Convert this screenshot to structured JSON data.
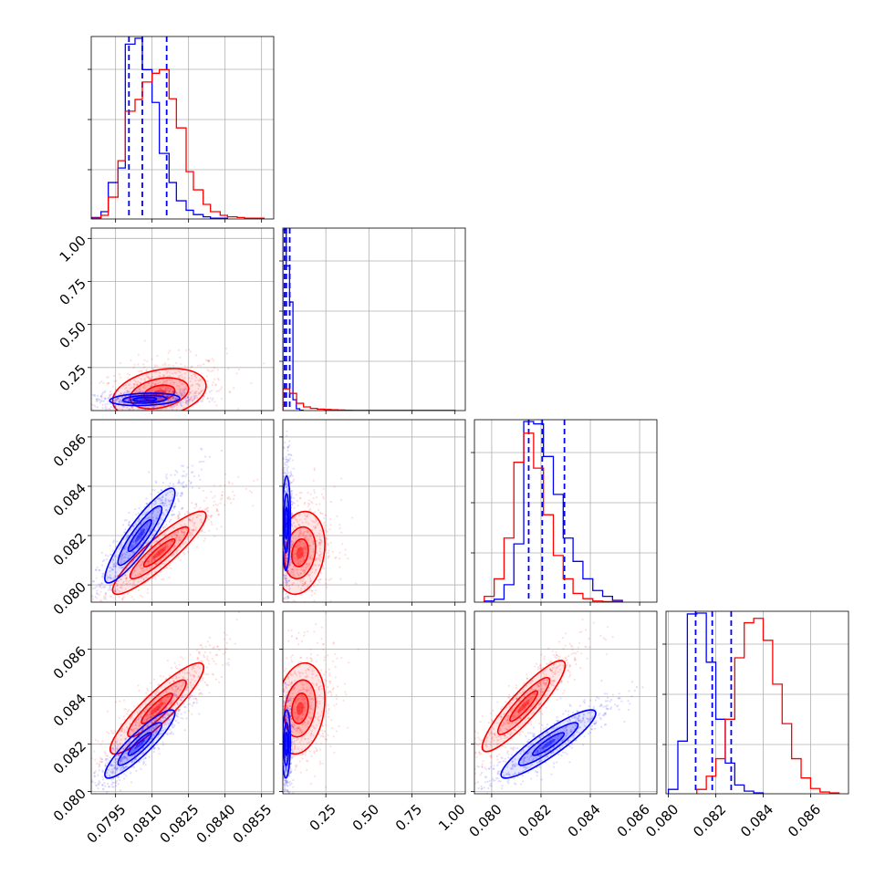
{
  "colors": {
    "series_a": "#0000ff",
    "series_b": "#ff0000",
    "grid": "#b0b0b0"
  },
  "chart_data": {
    "type": "corner",
    "grid": true,
    "params": [
      {
        "range": [
          0.0785,
          0.086
        ],
        "ticks": [
          "0.0795",
          "0.0810",
          "0.0825",
          "0.0840",
          "0.0855"
        ],
        "tick_values": [
          0.0795,
          0.081,
          0.0825,
          0.084,
          0.0855
        ]
      },
      {
        "range": [
          0.0,
          1.06
        ],
        "ticks": [
          "0.25",
          "0.50",
          "0.75",
          "1.00"
        ],
        "tick_values": [
          0.25,
          0.5,
          0.75,
          1.0
        ]
      },
      {
        "range": [
          0.0793,
          0.0867
        ],
        "ticks": [
          "0.080",
          "0.082",
          "0.084",
          "0.086"
        ],
        "tick_values": [
          0.08,
          0.082,
          0.084,
          0.086
        ]
      },
      {
        "range": [
          0.0799,
          0.0876
        ],
        "ticks": [
          "0.080",
          "0.082",
          "0.084",
          "0.086"
        ],
        "tick_values": [
          0.08,
          0.082,
          0.084,
          0.086
        ]
      }
    ],
    "series": [
      {
        "color": "#0000ff",
        "histograms": [
          {
            "edges": [
              0.0785,
              0.0789,
              0.0792,
              0.0796,
              0.0799,
              0.0803,
              0.0806,
              0.081,
              0.0813,
              0.0817,
              0.082,
              0.0824,
              0.0827,
              0.0831,
              0.0834,
              0.0838,
              0.0841
            ],
            "counts": [
              2,
              10,
              50,
              70,
              240,
              248,
              205,
              160,
              90,
              50,
              25,
              12,
              6,
              3,
              1,
              1
            ]
          },
          {
            "edges": [
              0.0,
              0.0196,
              0.0392,
              0.0588,
              0.0784,
              0.098,
              0.1176
            ],
            "counts": [
              999,
              800,
              600,
              60,
              10,
              2
            ]
          },
          {
            "edges": [
              0.0797,
              0.0801,
              0.0805,
              0.0809,
              0.0813,
              0.0817,
              0.0821,
              0.0825,
              0.0829,
              0.0833,
              0.0837,
              0.0841,
              0.0845,
              0.0849,
              0.0853
            ],
            "counts": [
              2,
              5,
              30,
              100,
              310,
              306,
              250,
              185,
              110,
              70,
              40,
              20,
              10,
              3
            ]
          },
          {
            "edges": [
              0.08,
              0.0804,
              0.0808,
              0.0812,
              0.0816,
              0.082,
              0.0824,
              0.0828,
              0.0832,
              0.0836,
              0.084
            ],
            "counts": [
              5,
              60,
              205,
              206,
              150,
              85,
              35,
              10,
              3,
              1
            ]
          }
        ],
        "quantiles": [
          [
            0.08005,
            0.0806,
            0.0816
          ],
          [
            0.01,
            0.02,
            0.04
          ],
          [
            0.0815,
            0.08205,
            0.08295
          ],
          [
            0.08115,
            0.08185,
            0.08265
          ]
        ],
        "ellipses": [
          {
            "p": [
              0,
              1
            ],
            "center": [
              0.0807,
              0.065
            ],
            "sd": [
              0.0006,
              0.015
            ],
            "rho": 0.2
          },
          {
            "p": [
              0,
              2
            ],
            "center": [
              0.0805,
              0.082
            ],
            "sd": [
              0.0006,
              0.0008
            ],
            "rho": 0.9
          },
          {
            "p": [
              1,
              2
            ],
            "center": [
              0.02,
              0.0825
            ],
            "sd": [
              0.01,
              0.0008
            ],
            "rho": 0.1
          },
          {
            "p": [
              0,
              3
            ],
            "center": [
              0.0805,
              0.082
            ],
            "sd": [
              0.0006,
              0.0006
            ],
            "rho": 0.9
          },
          {
            "p": [
              1,
              3
            ],
            "center": [
              0.02,
              0.082
            ],
            "sd": [
              0.01,
              0.0006
            ],
            "rho": 0.1
          },
          {
            "p": [
              2,
              3
            ],
            "center": [
              0.0823,
              0.082
            ],
            "sd": [
              0.0008,
              0.0006
            ],
            "rho": 0.9
          }
        ]
      },
      {
        "color": "#ff0000",
        "histograms": [
          {
            "edges": [
              0.0785,
              0.0789,
              0.0792,
              0.0796,
              0.0799,
              0.0803,
              0.0806,
              0.081,
              0.0813,
              0.0817,
              0.082,
              0.0824,
              0.0827,
              0.0831,
              0.0834,
              0.0838,
              0.0841,
              0.0845,
              0.0848,
              0.0852,
              0.0856
            ],
            "counts": [
              1,
              5,
              30,
              80,
              148,
              164,
              188,
              200,
              205,
              165,
              125,
              65,
              40,
              20,
              10,
              5,
              3,
              2,
              1,
              1
            ]
          },
          {
            "edges": [
              0.0,
              0.04,
              0.08,
              0.12,
              0.16,
              0.2,
              0.24,
              0.28,
              0.32,
              0.36,
              0.4,
              0.44,
              0.48,
              1.0
            ],
            "counts": [
              120,
              95,
              40,
              20,
              12,
              8,
              6,
              4,
              3,
              2,
              1,
              1,
              1
            ]
          },
          {
            "edges": [
              0.0797,
              0.0801,
              0.0805,
              0.0809,
              0.0813,
              0.0817,
              0.0821,
              0.0825,
              0.0829,
              0.0833,
              0.0837,
              0.0841,
              0.0845,
              0.0849,
              0.0853
            ],
            "counts": [
              10,
              40,
              110,
              240,
              290,
              230,
              150,
              80,
              40,
              15,
              6,
              2,
              1,
              1
            ]
          },
          {
            "edges": [
              0.0812,
              0.0816,
              0.082,
              0.0824,
              0.0828,
              0.0832,
              0.0836,
              0.084,
              0.0844,
              0.0848,
              0.0852,
              0.0856,
              0.086,
              0.0864,
              0.0868,
              0.0872
            ],
            "counts": [
              5,
              20,
              40,
              85,
              155,
              195,
              200,
              175,
              125,
              80,
              40,
              18,
              6,
              2,
              1
            ]
          }
        ],
        "quantiles": [],
        "ellipses": [
          {
            "p": [
              0,
              1
            ],
            "center": [
              0.0813,
              0.1
            ],
            "sd": [
              0.0008,
              0.06
            ],
            "rho": 0.3
          },
          {
            "p": [
              0,
              2
            ],
            "center": [
              0.0813,
              0.0813
            ],
            "sd": [
              0.0008,
              0.0007
            ],
            "rho": 0.9
          },
          {
            "p": [
              1,
              2
            ],
            "center": [
              0.1,
              0.0813
            ],
            "sd": [
              0.06,
              0.0007
            ],
            "rho": 0.2
          },
          {
            "p": [
              0,
              3
            ],
            "center": [
              0.0812,
              0.0835
            ],
            "sd": [
              0.0008,
              0.0008
            ],
            "rho": 0.9
          },
          {
            "p": [
              1,
              3
            ],
            "center": [
              0.1,
              0.0835
            ],
            "sd": [
              0.06,
              0.0008
            ],
            "rho": 0.2
          },
          {
            "p": [
              2,
              3
            ],
            "center": [
              0.0813,
              0.0836
            ],
            "sd": [
              0.0007,
              0.0008
            ],
            "rho": 0.9
          }
        ]
      }
    ]
  }
}
